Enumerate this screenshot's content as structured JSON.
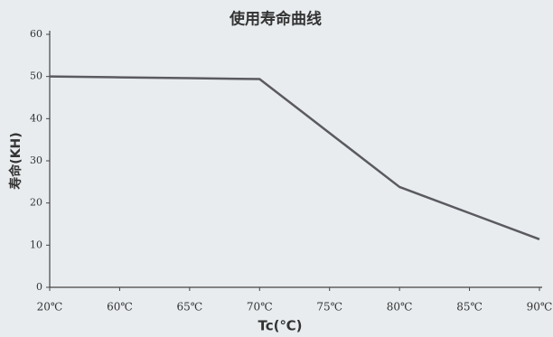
{
  "chart_data": {
    "type": "line",
    "title": "使用寿命曲线",
    "y_label": "寿命(KH)",
    "x_label": "Tc(℃)",
    "categories": [
      "20℃",
      "60℃",
      "65℃",
      "70℃",
      "75℃",
      "80℃",
      "85℃",
      "90℃"
    ],
    "series": [
      {
        "name": "寿命",
        "color": "#5a5a60",
        "values": [
          50,
          49.8,
          49.6,
          49.4,
          36.6,
          23.8,
          17.6,
          11.4
        ]
      }
    ],
    "ylim": [
      0,
      60
    ],
    "yticks": [
      0,
      10,
      20,
      30,
      40,
      50,
      60
    ],
    "grid": false
  }
}
